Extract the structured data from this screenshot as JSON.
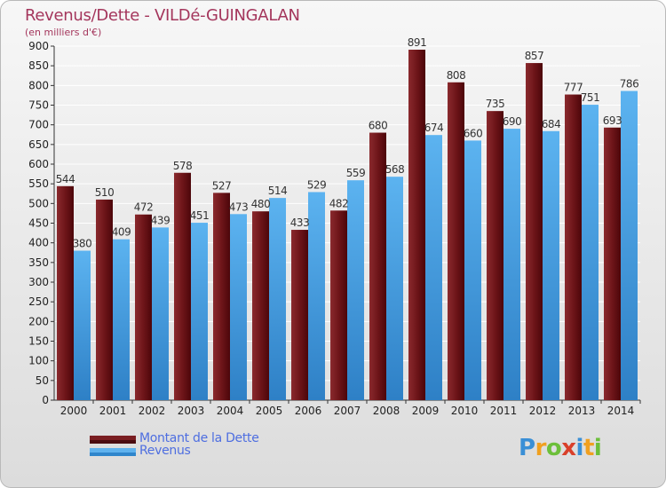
{
  "header": {
    "title": "Revenus/Dette - VILDé-GUINGALAN",
    "subtitle": "(en milliers d'€)"
  },
  "legend": {
    "items": [
      {
        "label": "Montant de la Dette",
        "color": "#7a1e22"
      },
      {
        "label": "Revenus",
        "color": "#3f9be0"
      }
    ]
  },
  "logo": {
    "text": "Proxiti",
    "letters": [
      "P",
      "r",
      "o",
      "x",
      "i",
      "t",
      "i"
    ],
    "colors": [
      "#3a8fd6",
      "#f0a020",
      "#6cbf3a",
      "#d9402a",
      "#3a8fd6",
      "#f0a020",
      "#6cbf3a"
    ]
  },
  "chart_data": {
    "type": "bar",
    "title": "Revenus/Dette - VILDé-GUINGALAN",
    "ylabel": "(en milliers d'€)",
    "xlabel": "",
    "categories": [
      "2000",
      "2001",
      "2002",
      "2003",
      "2004",
      "2005",
      "2006",
      "2007",
      "2008",
      "2009",
      "2010",
      "2011",
      "2012",
      "2013",
      "2014"
    ],
    "series": [
      {
        "name": "Montant de la Dette",
        "color": "#7a1e22",
        "values": [
          544,
          510,
          472,
          578,
          527,
          480,
          433,
          482,
          680,
          891,
          808,
          735,
          857,
          777,
          693
        ],
        "labels": [
          "544",
          "510",
          "472",
          "578",
          "527",
          "480",
          "433",
          "482",
          "680",
          "891",
          "808",
          "735",
          "857",
          "777",
          "693"
        ]
      },
      {
        "name": "Revenus",
        "color": "#3f9be0",
        "values": [
          380,
          409,
          439,
          451,
          473,
          514,
          529,
          559,
          568,
          674,
          660,
          690,
          684,
          751,
          786
        ],
        "labels": [
          "380",
          "409",
          "439",
          "451",
          "473",
          "514",
          "529",
          "559",
          "568",
          "674",
          "660",
          "690",
          "684",
          "751",
          "786"
        ]
      }
    ],
    "ylim": [
      0,
      900
    ],
    "yticks": [
      "0",
      "50",
      "100",
      "150",
      "200",
      "250",
      "300",
      "350",
      "400",
      "450",
      "500",
      "550",
      "600",
      "650",
      "700",
      "750",
      "800",
      "850",
      "900"
    ],
    "grid": true,
    "legend_position": "bottom-left"
  }
}
